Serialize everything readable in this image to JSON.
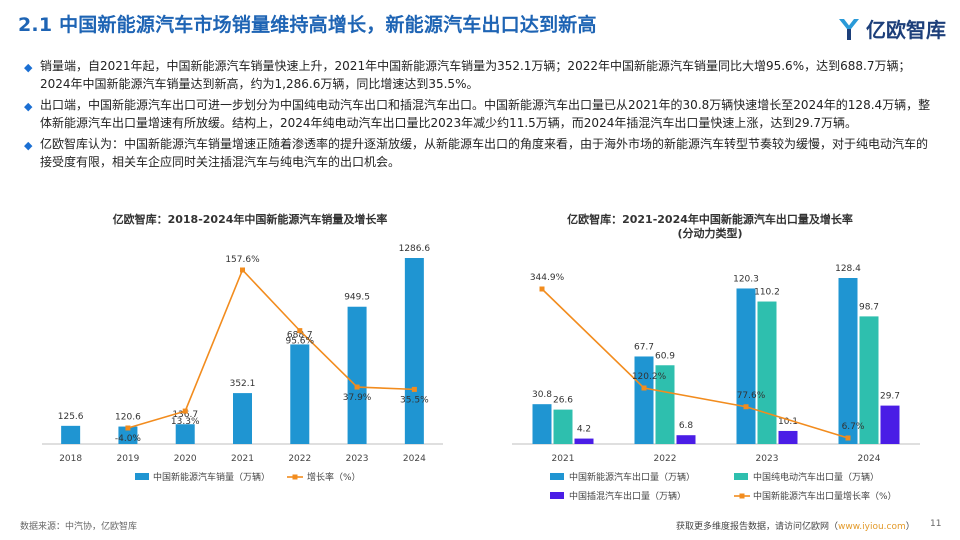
{
  "page": {
    "title": "2.1 中国新能源汽车市场销量维持高增长，新能源汽车出口达到新高",
    "logo": "亿欧智库",
    "bullets": [
      "销量端，自2021年起，中国新能源汽车销量快速上升，2021年中国新能源汽车销量为352.1万辆；2022年中国新能源汽车销量同比大增95.6%，达到688.7万辆；2024年中国新能源汽车销量达到新高，约为1,286.6万辆，同比增速达到35.5%。",
      "出口端，中国新能源汽车出口可进一步划分为中国纯电动汽车出口和插混汽车出口。中国新能源汽车出口量已从2021年的30.8万辆快速增长至2024年的128.4万辆，整体新能源汽车出口量增速有所放缓。结构上，2024年纯电动汽车出口量比2023年减少约11.5万辆，而2024年插混汽车出口量快速上涨，达到29.7万辆。",
      "亿欧智库认为：中国新能源汽车销量增速正随着渗透率的提升逐渐放缓，从新能源车出口的角度来看，由于海外市场的新能源汽车转型节奏较为缓慢，对于纯电动汽车的接受度有限，相关车企应同时关注插混汽车与纯电汽车的出口机会。"
    ],
    "footer_source": "数据来源：中汽协，亿欧智库",
    "footer_more": "获取更多维度报告数据，请访问亿欧网（",
    "footer_link": "www.iyiou.com",
    "footer_close": "）",
    "page_number": "11"
  },
  "colors": {
    "blue": "#1f95d2",
    "teal": "#2ebfae",
    "indigo": "#4a1de6",
    "orange": "#f28c1e",
    "title_blue": "#1e64b4"
  },
  "chart_data": [
    {
      "type": "bar",
      "title": "亿欧智库：2018-2024年中国新能源汽车销量及增长率",
      "categories": [
        "2018",
        "2019",
        "2020",
        "2021",
        "2022",
        "2023",
        "2024"
      ],
      "series": [
        {
          "name": "中国新能源汽车销量（万辆）",
          "kind": "bar",
          "values": [
            125.6,
            120.6,
            136.7,
            352.1,
            688.7,
            949.5,
            1286.6
          ],
          "labels": [
            "125.6",
            "120.6",
            "136.7",
            "352.1",
            "688.7",
            "949.5",
            "1286.6"
          ]
        },
        {
          "name": "增长率（%）",
          "kind": "line",
          "values": [
            null,
            -4.0,
            13.3,
            157.6,
            95.6,
            37.9,
            35.5
          ],
          "labels": [
            "",
            "-4.0%",
            "13.3%",
            "157.6%",
            "95.6%",
            "37.9%",
            "35.5%"
          ]
        }
      ],
      "legend_position": "bottom"
    },
    {
      "type": "bar",
      "title": "亿欧智库：2021-2024年中国新能源汽车出口量及增长率",
      "subtitle": "(分动力类型)",
      "categories": [
        "2021",
        "2022",
        "2023",
        "2024"
      ],
      "series": [
        {
          "name": "中国新能源汽车出口量（万辆）",
          "kind": "bar",
          "values": [
            30.8,
            67.7,
            120.3,
            128.4
          ],
          "labels": [
            "30.8",
            "67.7",
            "120.3",
            "128.4"
          ]
        },
        {
          "name": "中国纯电动汽车出口量（万辆）",
          "kind": "bar",
          "values": [
            26.6,
            60.9,
            110.2,
            98.7
          ],
          "labels": [
            "26.6",
            "60.9",
            "110.2",
            "98.7"
          ]
        },
        {
          "name": "中国插混汽车出口量（万辆）",
          "kind": "bar",
          "values": [
            4.2,
            6.8,
            10.1,
            29.7
          ],
          "labels": [
            "4.2",
            "6.8",
            "10.1",
            "29.7"
          ]
        },
        {
          "name": "中国新能源汽车出口量增长率（%）",
          "kind": "line",
          "values": [
            344.9,
            120.2,
            77.6,
            6.7
          ],
          "labels": [
            "344.9%",
            "120.2%",
            "77.6%",
            "6.7%"
          ]
        }
      ],
      "legend_position": "bottom"
    }
  ]
}
